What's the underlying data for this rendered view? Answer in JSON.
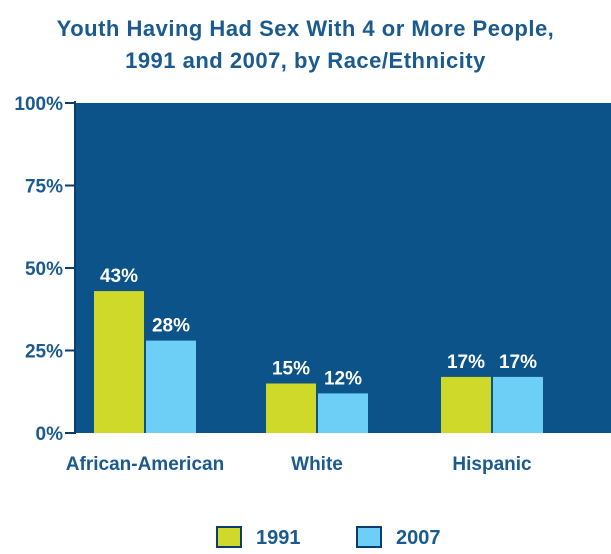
{
  "chart_data": {
    "type": "bar",
    "title_line1": "Youth Having Had Sex With 4 or More People,",
    "title_line2": "1991 and 2007, by Race/Ethnicity",
    "categories": [
      "African-American",
      "White",
      "Hispanic"
    ],
    "series": [
      {
        "name": "1991",
        "color": "#cfd92a",
        "values": [
          43,
          15,
          17
        ],
        "value_labels": [
          "43%",
          "15%",
          "17%"
        ]
      },
      {
        "name": "2007",
        "color": "#6dcff5",
        "values": [
          28,
          12,
          17
        ],
        "value_labels": [
          "28%",
          "12%",
          "17%"
        ]
      }
    ],
    "yticks": [
      "0%",
      "25%",
      "50%",
      "75%",
      "100%"
    ],
    "ylim": [
      0,
      100
    ],
    "plot_background": "#0b5389",
    "legend_position": "bottom"
  }
}
